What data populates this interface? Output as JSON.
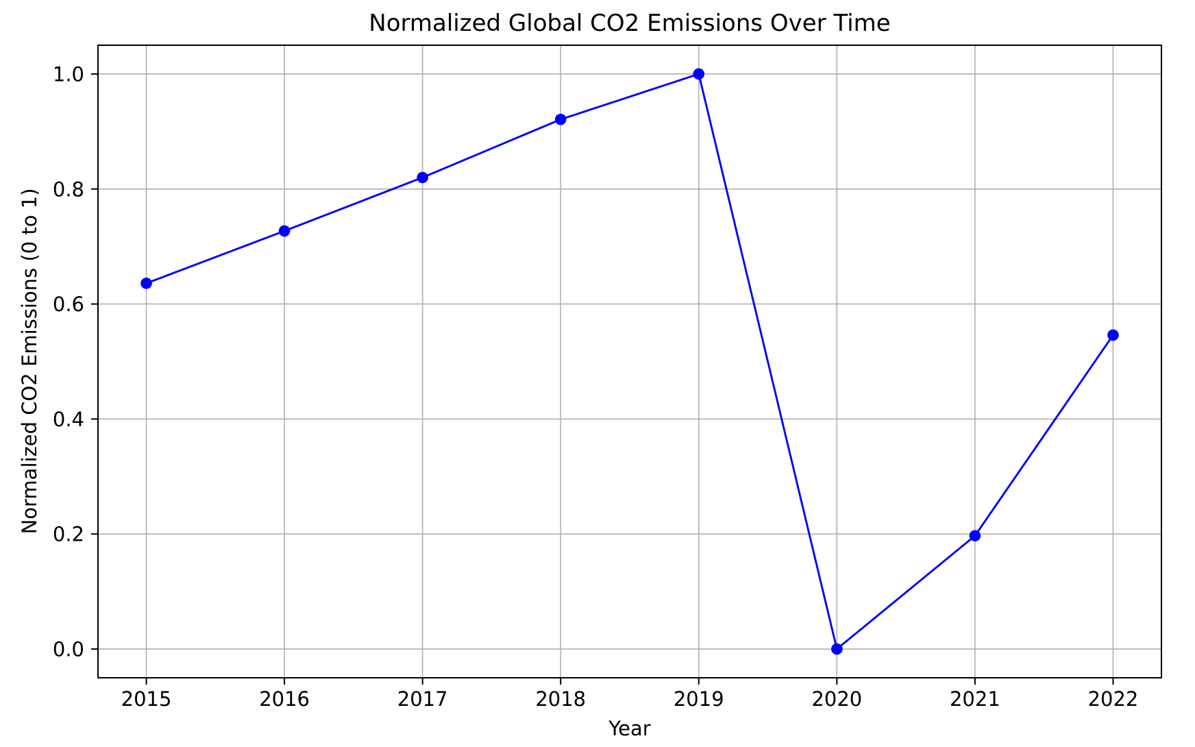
{
  "chart_data": {
    "type": "line",
    "title": "Normalized Global CO2 Emissions Over Time",
    "xlabel": "Year",
    "ylabel": "Normalized CO2 Emissions (0 to 1)",
    "x": [
      2015,
      2016,
      2017,
      2018,
      2019,
      2020,
      2021,
      2022
    ],
    "series": [
      {
        "name": "Normalized CO2 Emissions",
        "values": [
          0.636,
          0.727,
          0.82,
          0.921,
          1.0,
          0.0,
          0.197,
          0.546
        ],
        "color": "#0000ff",
        "marker": "circle",
        "line_width": 2.9,
        "marker_radius": 8.3
      }
    ],
    "xtick_labels": [
      "2015",
      "2016",
      "2017",
      "2018",
      "2019",
      "2020",
      "2021",
      "2022"
    ],
    "ytick_values": [
      0.0,
      0.2,
      0.4,
      0.6,
      0.8,
      1.0
    ],
    "ytick_labels": [
      "0.0",
      "0.2",
      "0.4",
      "0.6",
      "0.8",
      "1.0"
    ],
    "xlim": [
      2014.65,
      2022.35
    ],
    "ylim": [
      -0.05,
      1.05
    ],
    "grid": true,
    "grid_color": "#b0b0b0",
    "axis_color": "#000000",
    "text_color": "#000000",
    "background_color": "#ffffff",
    "legend": "none"
  }
}
